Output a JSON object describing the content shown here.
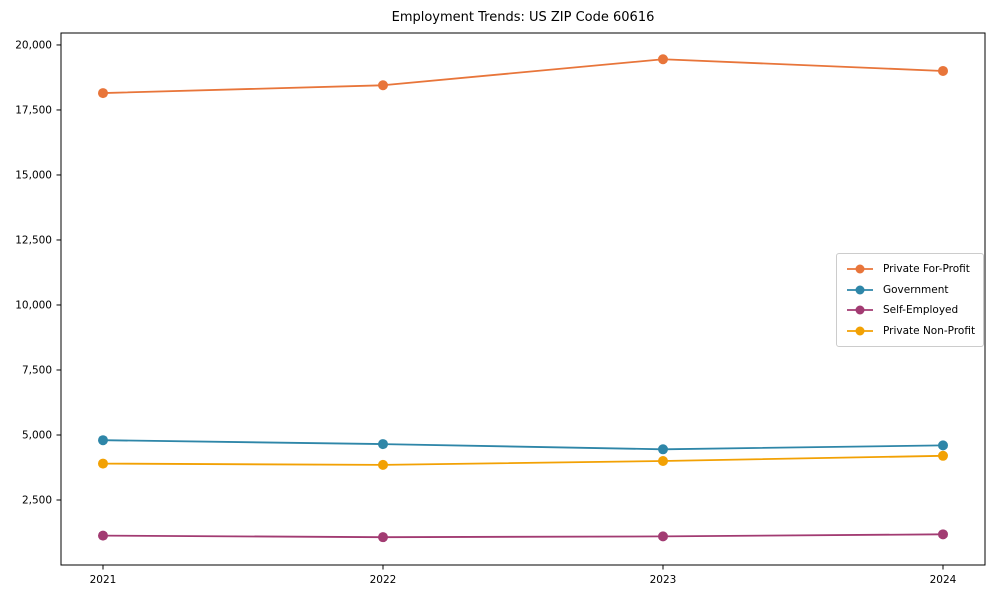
{
  "figure": {
    "background": "#ffffff",
    "frame_color": "#000000"
  },
  "chart_data": {
    "type": "line",
    "title": "Employment Trends: US ZIP Code 60616",
    "xlabel": "",
    "ylabel": "",
    "x": [
      2021,
      2022,
      2023,
      2024
    ],
    "x_tick_labels": [
      "2021",
      "2022",
      "2023",
      "2024"
    ],
    "xlim": [
      2020.85,
      2024.15
    ],
    "ylim": [
      0,
      20460
    ],
    "yticks": [
      2500,
      5000,
      7500,
      10000,
      12500,
      15000,
      17500,
      20000
    ],
    "ytick_labels": [
      "2,500",
      "5,000",
      "7,500",
      "10,000",
      "12,500",
      "15,000",
      "17,500",
      "20,000"
    ],
    "grid": false,
    "legend_position": "center right",
    "series": [
      {
        "name": "Private For-Profit",
        "color": "#E8753A",
        "values": [
          18150,
          18450,
          19450,
          19000
        ]
      },
      {
        "name": "Government",
        "color": "#2E86A8",
        "values": [
          4800,
          4650,
          4450,
          4600
        ]
      },
      {
        "name": "Self-Employed",
        "color": "#A23B72",
        "values": [
          1130,
          1070,
          1100,
          1180
        ]
      },
      {
        "name": "Private Non-Profit",
        "color": "#F2A104",
        "values": [
          3900,
          3850,
          4000,
          4200
        ]
      }
    ]
  }
}
